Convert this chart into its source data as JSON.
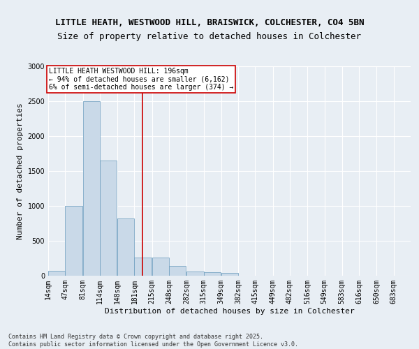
{
  "title1": "LITTLE HEATH, WESTWOOD HILL, BRAISWICK, COLCHESTER, CO4 5BN",
  "title2": "Size of property relative to detached houses in Colchester",
  "xlabel": "Distribution of detached houses by size in Colchester",
  "ylabel": "Number of detached properties",
  "bins": [
    "14sqm",
    "47sqm",
    "81sqm",
    "114sqm",
    "148sqm",
    "181sqm",
    "215sqm",
    "248sqm",
    "282sqm",
    "315sqm",
    "349sqm",
    "382sqm",
    "415sqm",
    "449sqm",
    "482sqm",
    "516sqm",
    "549sqm",
    "583sqm",
    "616sqm",
    "650sqm",
    "683sqm"
  ],
  "bin_edges": [
    14,
    47,
    81,
    114,
    148,
    181,
    215,
    248,
    282,
    315,
    349,
    382,
    415,
    449,
    482,
    516,
    549,
    583,
    616,
    650,
    683
  ],
  "values": [
    70,
    1000,
    2500,
    1650,
    820,
    260,
    260,
    140,
    65,
    55,
    40,
    0,
    0,
    0,
    0,
    0,
    0,
    0,
    0,
    0,
    0
  ],
  "bar_color": "#c9d9e8",
  "bar_edge_color": "#6699bb",
  "vline_x": 196,
  "vline_color": "#cc0000",
  "annotation_text": "LITTLE HEATH WESTWOOD HILL: 196sqm\n← 94% of detached houses are smaller (6,162)\n6% of semi-detached houses are larger (374) →",
  "annotation_box_color": "white",
  "annotation_box_edge_color": "#cc0000",
  "ylim": [
    0,
    3000
  ],
  "yticks": [
    0,
    500,
    1000,
    1500,
    2000,
    2500,
    3000
  ],
  "bg_color": "#e8eef4",
  "plot_bg_color": "#e8eef4",
  "footer_text": "Contains HM Land Registry data © Crown copyright and database right 2025.\nContains public sector information licensed under the Open Government Licence v3.0.",
  "title1_fontsize": 9,
  "title2_fontsize": 9,
  "xlabel_fontsize": 8,
  "ylabel_fontsize": 8,
  "tick_fontsize": 7,
  "footer_fontsize": 6,
  "annot_fontsize": 7
}
